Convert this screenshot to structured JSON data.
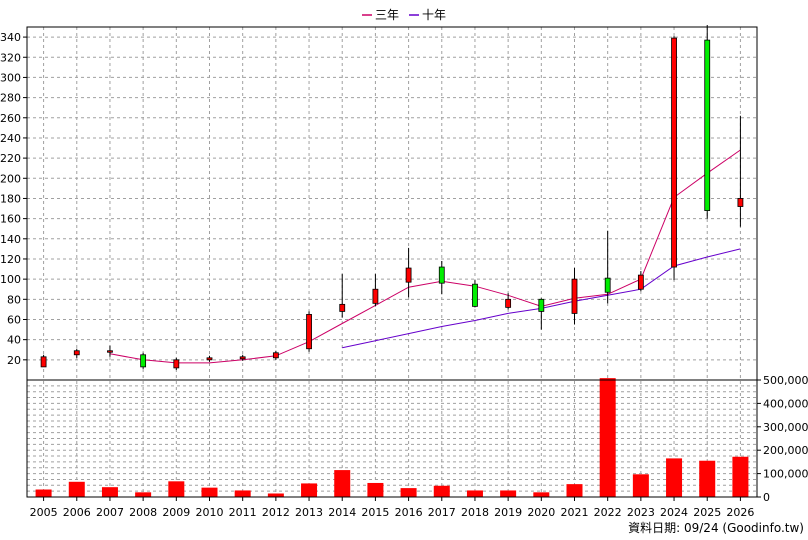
{
  "chart_data": {
    "type": "candlestick-bar",
    "legend": [
      {
        "name": "三年",
        "color": "#cc0066"
      },
      {
        "name": "十年",
        "color": "#6600cc"
      }
    ],
    "years": [
      "2005",
      "2006",
      "2007",
      "2008",
      "2009",
      "2010",
      "2011",
      "2012",
      "2013",
      "2014",
      "2015",
      "2016",
      "2017",
      "2018",
      "2019",
      "2020",
      "2021",
      "2022",
      "2023",
      "2024",
      "2025",
      "2026"
    ],
    "price_axis": {
      "min": 0,
      "max": 350,
      "ticks": [
        20,
        40,
        60,
        80,
        100,
        120,
        140,
        160,
        180,
        200,
        220,
        240,
        260,
        280,
        300,
        320,
        340
      ]
    },
    "volume_axis": {
      "min": 0,
      "max": 500000,
      "ticks": [
        "0",
        "100,000",
        "200,000",
        "300,000",
        "400,000",
        "500,000"
      ],
      "tick_values": [
        0,
        100000,
        200000,
        300000,
        400000,
        500000
      ]
    },
    "ohlc": [
      {
        "o": 23,
        "h": 25,
        "l": 13,
        "c": 13,
        "color": "red"
      },
      {
        "o": 25,
        "h": 31,
        "l": 22,
        "c": 29,
        "color": "red"
      },
      {
        "o": 28,
        "h": 34,
        "l": 23,
        "c": 29,
        "color": "red"
      },
      {
        "o": 13,
        "h": 27,
        "l": 11,
        "c": 25,
        "color": "green"
      },
      {
        "o": 20,
        "h": 22,
        "l": 10,
        "c": 12,
        "color": "red"
      },
      {
        "o": 20,
        "h": 24,
        "l": 18,
        "c": 22,
        "color": "red"
      },
      {
        "o": 21,
        "h": 25,
        "l": 19,
        "c": 23,
        "color": "red"
      },
      {
        "o": 22,
        "h": 29,
        "l": 20,
        "c": 27,
        "color": "red"
      },
      {
        "o": 31,
        "h": 68,
        "l": 28,
        "c": 65,
        "color": "red"
      },
      {
        "o": 68,
        "h": 105,
        "l": 62,
        "c": 75,
        "color": "red"
      },
      {
        "o": 76,
        "h": 105,
        "l": 73,
        "c": 90,
        "color": "red"
      },
      {
        "o": 97,
        "h": 131,
        "l": 82,
        "c": 111,
        "color": "red"
      },
      {
        "o": 112,
        "h": 118,
        "l": 85,
        "c": 96,
        "color": "green"
      },
      {
        "o": 95,
        "h": 99,
        "l": 72,
        "c": 73,
        "color": "green"
      },
      {
        "o": 72,
        "h": 86,
        "l": 70,
        "c": 80,
        "color": "red"
      },
      {
        "o": 80,
        "h": 81,
        "l": 50,
        "c": 68,
        "color": "green"
      },
      {
        "o": 66,
        "h": 111,
        "l": 55,
        "c": 100,
        "color": "red"
      },
      {
        "o": 101,
        "h": 148,
        "l": 76,
        "c": 87,
        "color": "green"
      },
      {
        "o": 90,
        "h": 108,
        "l": 88,
        "c": 104,
        "color": "red"
      },
      {
        "o": 112,
        "h": 341,
        "l": 99,
        "c": 339,
        "color": "red"
      },
      {
        "o": 337,
        "h": 352,
        "l": 160,
        "c": 168,
        "color": "green"
      },
      {
        "o": 172,
        "h": 262,
        "l": 152,
        "c": 180,
        "color": "red"
      }
    ],
    "ma3": [
      null,
      null,
      26,
      20,
      17,
      17,
      20,
      24,
      38,
      56,
      74,
      92,
      98,
      93,
      84,
      73,
      81,
      85,
      100,
      181,
      205,
      228
    ],
    "ma10": [
      null,
      null,
      null,
      null,
      null,
      null,
      null,
      null,
      null,
      32,
      39,
      46,
      53,
      59,
      66,
      71,
      78,
      84,
      90,
      113,
      122,
      130
    ],
    "volume": [
      32000,
      65000,
      42000,
      20000,
      67000,
      40000,
      28000,
      15000,
      58000,
      115000,
      60000,
      38000,
      48000,
      28000,
      28000,
      20000,
      55000,
      508000,
      97000,
      165000,
      155000,
      172000
    ]
  },
  "footer": "資料日期: 09/24  (Goodinfo.tw)"
}
